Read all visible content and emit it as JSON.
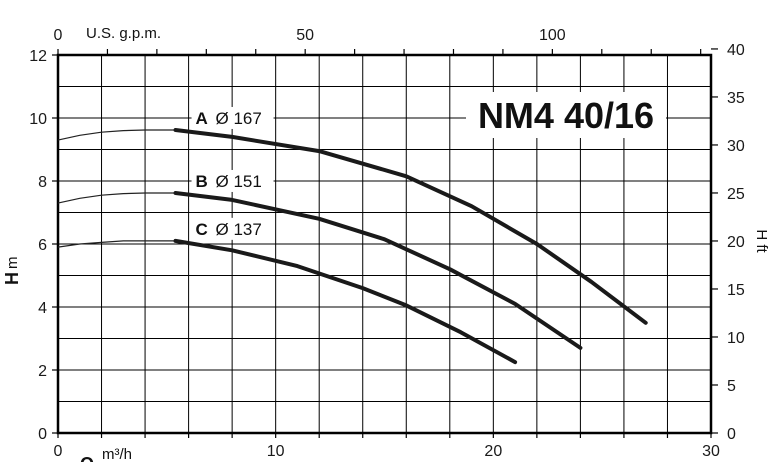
{
  "chart_data": {
    "type": "line",
    "title": "NM4 40/16",
    "x_axis": {
      "label_symbol": "Q",
      "unit": "m³/h",
      "range": [
        0,
        30
      ],
      "major_ticks": [
        0,
        10,
        20,
        30
      ],
      "minor_step": 2
    },
    "x2_axis": {
      "label": "U.S. g.p.m.",
      "major_ticks": [
        0,
        50,
        100
      ],
      "minor_step": 10,
      "factor_per_m3h": 4.403
    },
    "y_axis": {
      "label_symbol": "H",
      "unit": "m",
      "range": [
        0,
        12
      ],
      "major_ticks": [
        0,
        2,
        4,
        6,
        8,
        10,
        12
      ],
      "minor_step": 1
    },
    "y2_axis": {
      "label": "H ft",
      "major_ticks": [
        0,
        5,
        10,
        15,
        20,
        25,
        30,
        35,
        40
      ],
      "factor_per_m": 3.28084
    },
    "grid": true,
    "series": [
      {
        "name": "A",
        "diameter": "Ø 167",
        "thin": [
          [
            0,
            9.3
          ],
          [
            1,
            9.45
          ],
          [
            2,
            9.55
          ],
          [
            3,
            9.6
          ],
          [
            4,
            9.62
          ],
          [
            5.4,
            9.62
          ]
        ],
        "bold": [
          [
            5.4,
            9.62
          ],
          [
            8,
            9.4
          ],
          [
            12,
            8.95
          ],
          [
            16,
            8.15
          ],
          [
            19,
            7.2
          ],
          [
            22,
            6.0
          ],
          [
            24.5,
            4.8
          ],
          [
            27,
            3.5
          ]
        ]
      },
      {
        "name": "B",
        "diameter": "Ø 151",
        "thin": [
          [
            0,
            7.3
          ],
          [
            1,
            7.45
          ],
          [
            2,
            7.55
          ],
          [
            3,
            7.6
          ],
          [
            4,
            7.62
          ],
          [
            5.4,
            7.62
          ]
        ],
        "bold": [
          [
            5.4,
            7.62
          ],
          [
            8,
            7.4
          ],
          [
            12,
            6.8
          ],
          [
            15,
            6.15
          ],
          [
            18,
            5.2
          ],
          [
            21,
            4.1
          ],
          [
            24,
            2.7
          ]
        ]
      },
      {
        "name": "C",
        "diameter": "Ø 137",
        "thin": [
          [
            0,
            5.9
          ],
          [
            1,
            6.0
          ],
          [
            2,
            6.05
          ],
          [
            3,
            6.1
          ],
          [
            4,
            6.1
          ],
          [
            5.4,
            6.1
          ]
        ],
        "bold": [
          [
            5.4,
            6.1
          ],
          [
            8,
            5.8
          ],
          [
            11,
            5.3
          ],
          [
            14,
            4.6
          ],
          [
            16,
            4.05
          ],
          [
            18.5,
            3.2
          ],
          [
            21,
            2.25
          ]
        ]
      }
    ]
  }
}
